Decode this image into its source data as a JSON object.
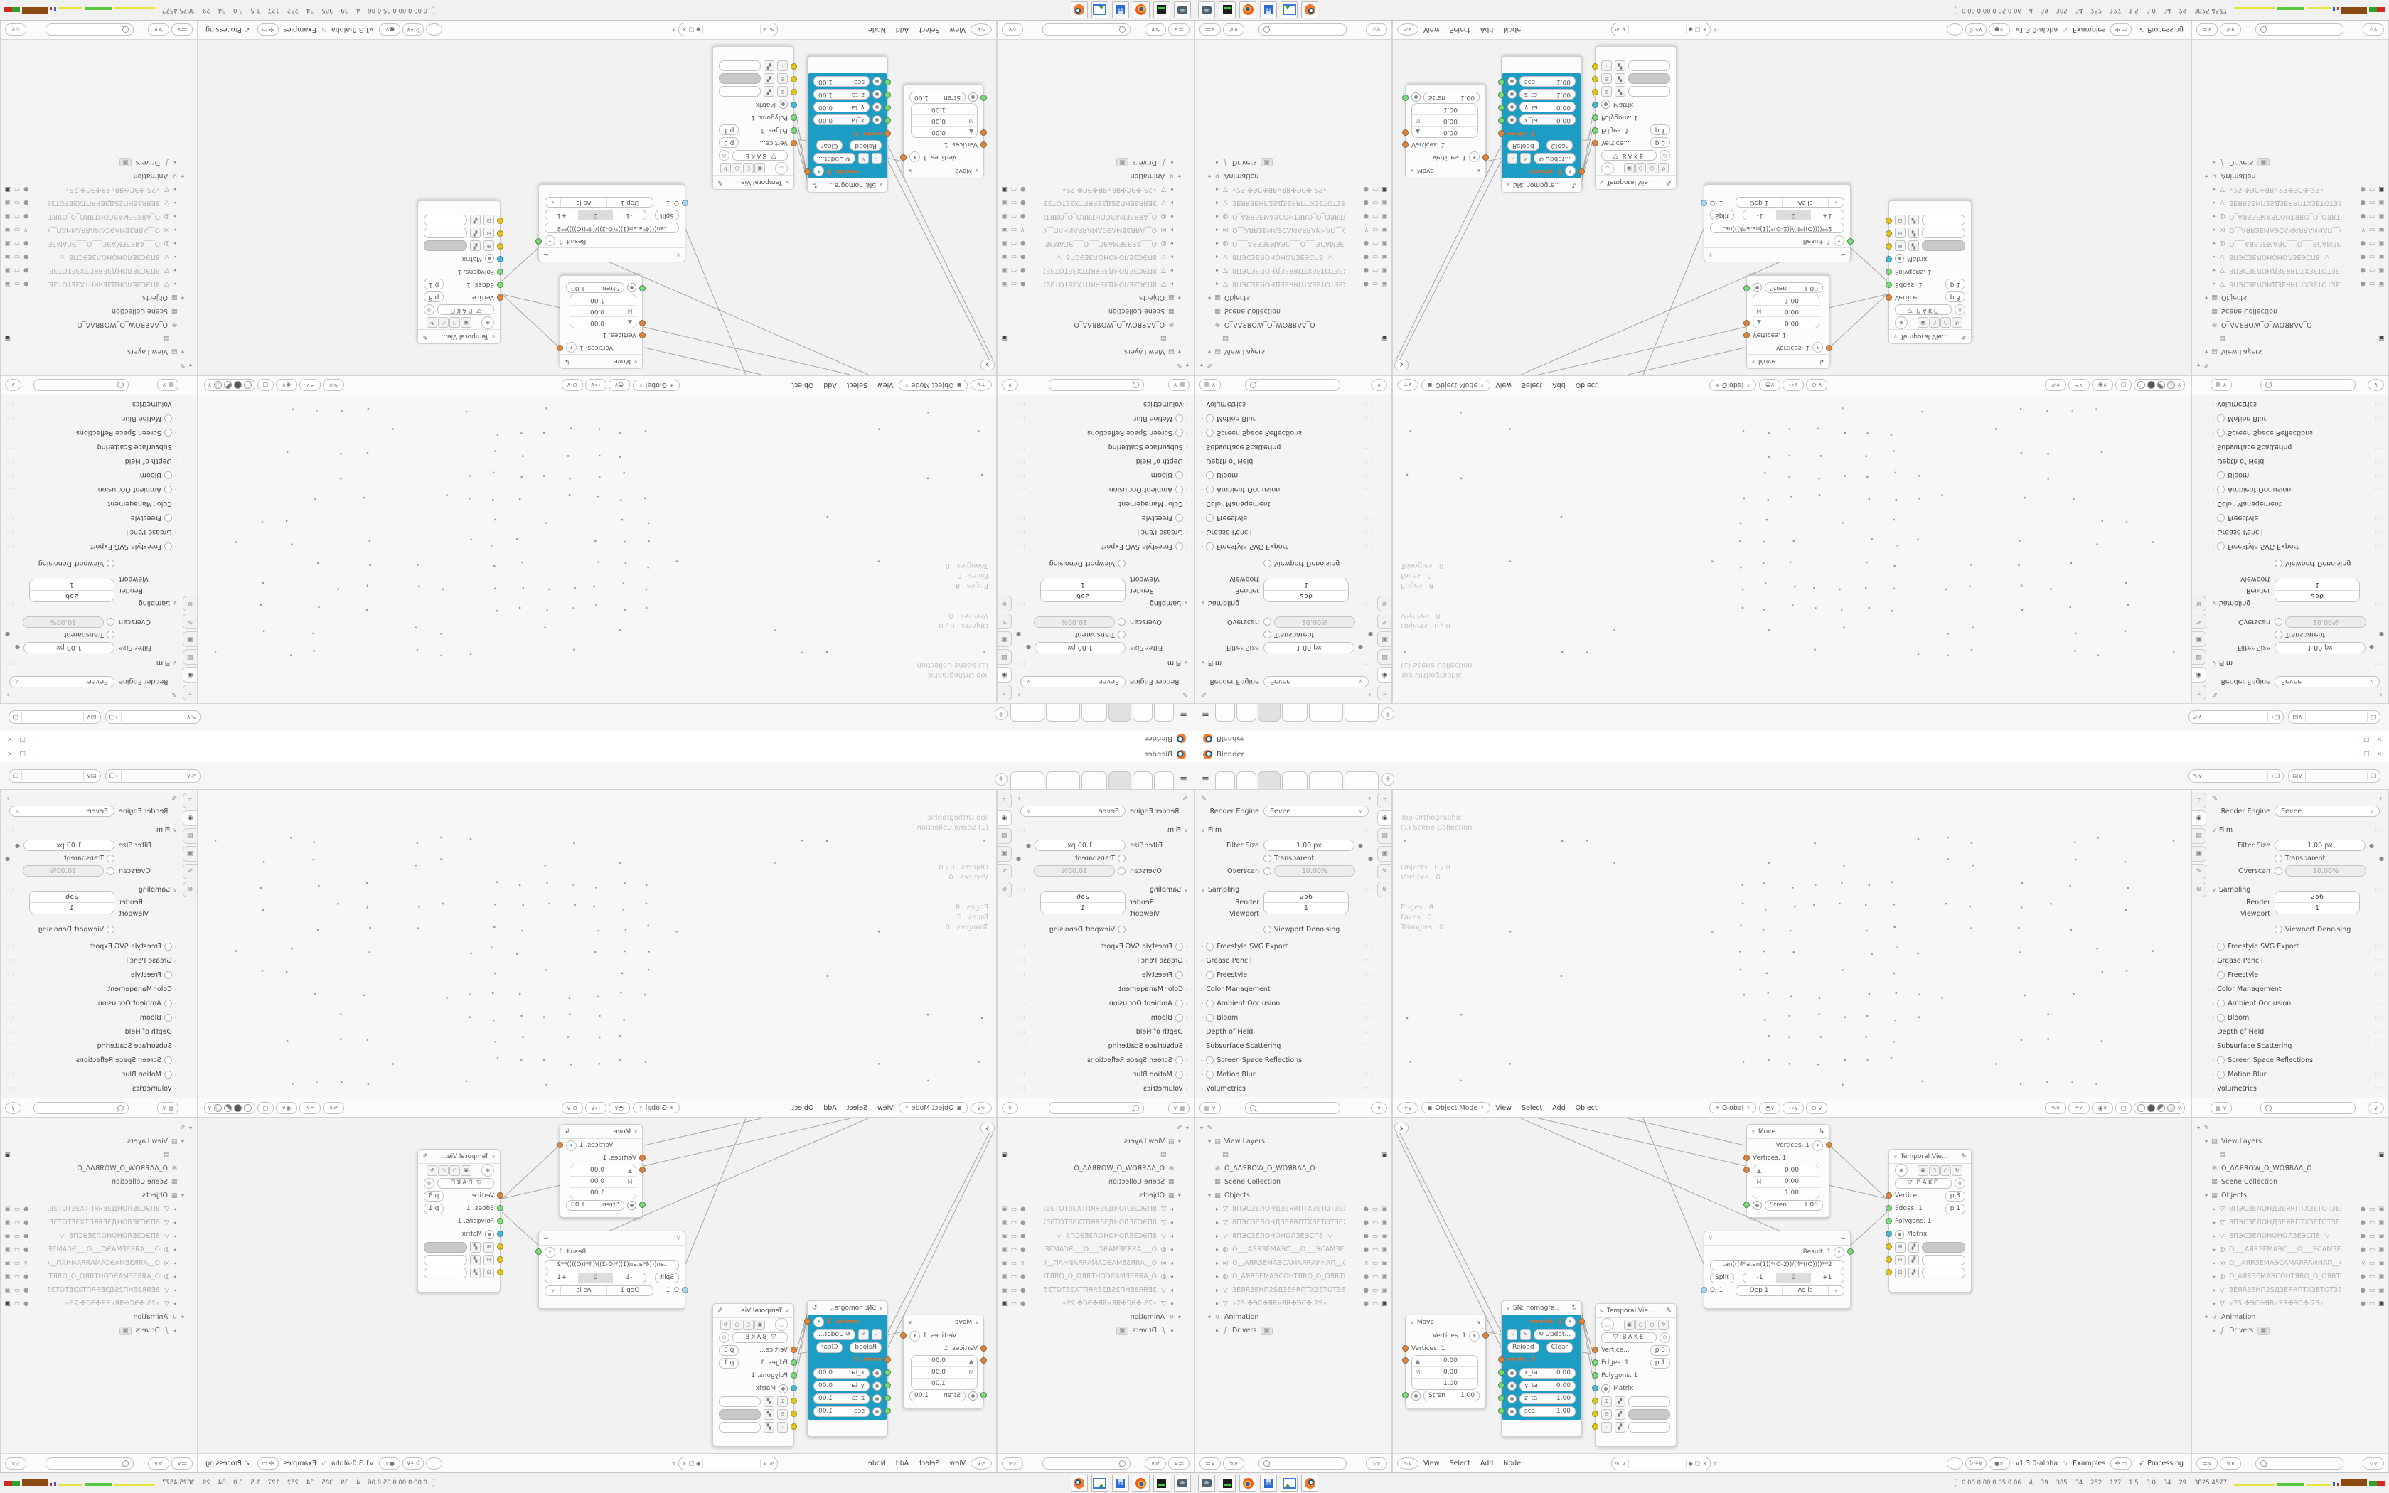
{
  "window": {
    "title": "Blender",
    "minimize": "–",
    "maximize": "□",
    "close": "×"
  },
  "topbar": {
    "new_tab": "+",
    "hamburger": "≡"
  },
  "properties": {
    "render_engine_label": "Render Engine",
    "render_engine_value": "Eevee",
    "film_label": "Film",
    "filter_size_label": "Filter Size",
    "filter_size_value": "1.00 px",
    "transparent_label": "Transparent",
    "overscan_label": "Overscan",
    "overscan_value": "10.00%",
    "sampling_label": "Sampling",
    "render_label": "Render",
    "render_value": "256",
    "viewport_label": "Viewport",
    "viewport_value": "1",
    "denoising_label": "Viewport Denoising",
    "sections": [
      {
        "radio": true,
        "label": "Freestyle SVG Export"
      },
      {
        "radio": false,
        "label": "Grease Pencil"
      },
      {
        "radio": true,
        "label": "Freestyle"
      },
      {
        "radio": false,
        "label": "Color Management"
      },
      {
        "radio": true,
        "label": "Ambient Occlusion"
      },
      {
        "radio": true,
        "label": "Bloom"
      },
      {
        "radio": false,
        "label": "Depth of Field"
      },
      {
        "radio": false,
        "label": "Subsurface Scattering"
      },
      {
        "radio": true,
        "label": "Screen Space Reflections"
      },
      {
        "radio": true,
        "label": "Motion Blur"
      },
      {
        "radio": false,
        "label": "Volumetrics"
      }
    ]
  },
  "viewport": {
    "overlay": [
      "Top Orthographic",
      "(1) Scene Collection",
      "",
      "Objects   0 / 0",
      "Vertices   0",
      "Edges   0",
      "Faces   0",
      "Triangles   0"
    ],
    "mode_value": "Object Mode",
    "menus": [
      "View",
      "Select",
      "Add",
      "Object"
    ],
    "orientation_value": "Global"
  },
  "outliner": {
    "rows": [
      {
        "lvl": 0,
        "arrow": "▾",
        "icon": "file",
        "label": ""
      },
      {
        "lvl": 1,
        "arrow": "▾",
        "icon": "layer",
        "label": "View Layers"
      },
      {
        "lvl": 2,
        "arrow": "",
        "icon": "chip",
        "label": "",
        "chip": true,
        "cam": "▣"
      },
      {
        "lvl": 1,
        "arrow": "",
        "icon": "world",
        "label": "O_ΔΛЯROW_O_WOЯRΛΔ_O"
      },
      {
        "lvl": 1,
        "arrow": "",
        "icon": "col",
        "label": "Scene Collection"
      },
      {
        "lvl": 1,
        "arrow": "▾",
        "icon": "col",
        "label": "Objects"
      },
      {
        "lvl": 2,
        "arrow": "▸",
        "icon": "mesh",
        "grayed": true,
        "label": "8ПЭСЗЕЛОНДЗЕЯRПТХЗЕТОТЗЕХІ",
        "t1": "●",
        "t2": "▭",
        "t3": "▣"
      },
      {
        "lvl": 2,
        "arrow": "▸",
        "icon": "mesh",
        "grayed": true,
        "label": "8ПЭСЗЕЛОНДЗЕЯRПТХЗЕТОТЗЕХ",
        "t1": "●",
        "t2": "▭",
        "t3": "▣"
      },
      {
        "lvl": 2,
        "arrow": "▸",
        "icon": "mesh",
        "grayed": true,
        "label": "8ПЭСЗЕЛОНОНОЛЗЕЭСП8",
        "extra": "▽",
        "t1": "●",
        "t2": "▭",
        "t3": "▣"
      },
      {
        "lvl": 2,
        "arrow": "▸",
        "icon": "cam",
        "grayed": true,
        "label": "О___АЯRЗЕМАЭС___О___ЭСАМЗЕ",
        "t1": "●",
        "t2": "▭",
        "t3": "▣"
      },
      {
        "lvl": 2,
        "arrow": "▸",
        "icon": "cam",
        "grayed": true,
        "label": "О__АЯRЗЕМАЭСАМАЯRАИНАП__О_",
        "t1": "∨",
        "t2": "▭",
        "t3": "▣"
      },
      {
        "lvl": 2,
        "arrow": "▸",
        "icon": "cam",
        "grayed": true,
        "label": "О_АЯRЗЕМАЭСОНТЯRО_О_ОЯRТНС",
        "t1": "●",
        "t2": "▭",
        "t3": "▣"
      },
      {
        "lvl": 2,
        "arrow": "▸",
        "icon": "mesh",
        "grayed": true,
        "label": "ЗЕЯRЗЕНП2SДЗЕЯRПТХЗЕТОТЗЕ)",
        "t1": "●",
        "t2": "▭",
        "t3": "▣"
      },
      {
        "lvl": 2,
        "arrow": "▸",
        "icon": "mesh",
        "grayed": true,
        "label": "∘2S:✣ЭС✣ЯR∘ЯR✣ЭС✣:2S∘",
        "t1": "●",
        "t2": "▭",
        "t3": "▣",
        "cam_on": true
      },
      {
        "lvl": 1,
        "arrow": "▾",
        "icon": "anim",
        "label": "Animation"
      },
      {
        "lvl": 2,
        "arrow": "▸",
        "icon": "driver",
        "label": "Drivers",
        "chip2": "▣"
      }
    ]
  },
  "node_editor": {
    "menus": [
      "View",
      "Select",
      "Add",
      "Node"
    ],
    "version": "v1.3.0-alpha",
    "examples_label": "Examples",
    "processing_label": "Processing",
    "check": "✓",
    "nodes": {
      "move": {
        "title": "Move",
        "out_label": "Vertices. 1",
        "in_label": "Vertices. 1",
        "m_label": "M",
        "v1": "0.00",
        "v2": "0.00",
        "v3": "1.00",
        "stren_label": "Stren",
        "stren_value": "1.00"
      },
      "sn": {
        "title": "SN: homogra..",
        "out_label": "overts. 1",
        "update_label": "Updat...",
        "reload_label": "Reload",
        "clear_label": "Clear",
        "in_label": "verts. 1",
        "fields": [
          {
            "k": "x_ta",
            "v": "0.00"
          },
          {
            "k": "y_ta",
            "v": "0.00"
          },
          {
            "k": "z_ta",
            "v": "1.00"
          },
          {
            "k": "scal",
            "v": "1.00"
          }
        ]
      },
      "temporal": {
        "title": "Temporal Vie...",
        "bake_label": "BAKE",
        "vertice_label": "Vertice...",
        "vertice_value": "p  3",
        "edges_label": "Edges. 1",
        "edges_value": "p  1",
        "polygons_label": "Polygons. 1",
        "matrix_label": "Matrix"
      },
      "formula": {
        "out_label": "Result. 1",
        "expr": "tan(((4*atan(1))*(O-2))/(4*((O))))**2",
        "split_label": "Split",
        "seg": [
          "-1",
          "0",
          "+1"
        ],
        "o_label": "O. 1",
        "dep_label": "Dep  1",
        "asis_label": "As is"
      }
    }
  },
  "taskbar": {
    "stats": "0.00 0.00 0.05 0.06    4    39    385    34    252    127    1.5    3.0    34    29    3825 4577"
  }
}
